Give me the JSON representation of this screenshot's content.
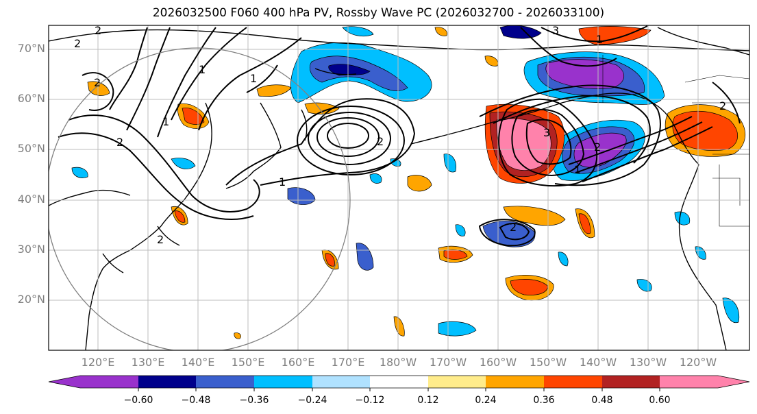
{
  "title": "2026032500 F060 400 hPa PV, Rossby Wave PC (2026032700 - 2026033100)",
  "lat_labels": [
    "70°N",
    "60°N",
    "50°N",
    "40°N",
    "30°N",
    "20°N"
  ],
  "lon_labels": [
    "120°E",
    "130°E",
    "140°E",
    "150°E",
    "160°E",
    "170°E",
    "180°W",
    "170°W",
    "160°W",
    "150°W",
    "140°W",
    "130°W",
    "120°W"
  ],
  "colorbar": {
    "colors": [
      "#9932cc",
      "#00008b",
      "#3a5fcd",
      "#00bfff",
      "#b0e2ff",
      "#ffffff",
      "#ffec8b",
      "#ffa500",
      "#ff4500",
      "#b22222",
      "#ff82ab"
    ],
    "tick_labels": [
      "−0.60",
      "−0.48",
      "−0.36",
      "−0.24",
      "−0.12",
      "0.12",
      "0.24",
      "0.36",
      "0.48",
      "0.60"
    ]
  },
  "contour_labels": [
    "2",
    "2",
    "1",
    "1",
    "1",
    "2",
    "1",
    "2",
    "2",
    "3",
    "2",
    "1",
    "2",
    "3",
    "2",
    "1",
    "2"
  ]
}
